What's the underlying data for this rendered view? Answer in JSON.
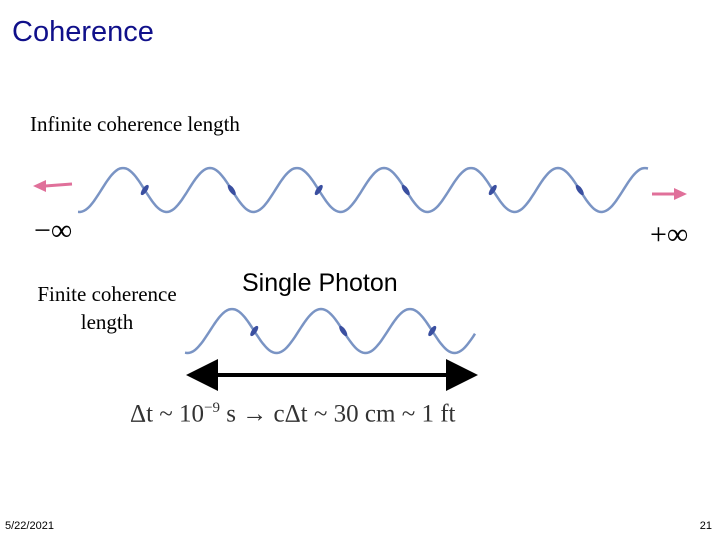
{
  "header": {
    "title": "Coherence"
  },
  "infinite": {
    "label": "Infinite coherence length",
    "left": "−∞",
    "right": "+∞"
  },
  "finite": {
    "label": "Finite coherence length",
    "photon": "Single Photon"
  },
  "equation": {
    "lhs": "Δt ~ 10",
    "exponent": "−9",
    "rhs": "s → cΔt ~ 30 cm  ~ 1 ft"
  },
  "footer": {
    "date": "5/22/2021",
    "page": "21"
  }
}
